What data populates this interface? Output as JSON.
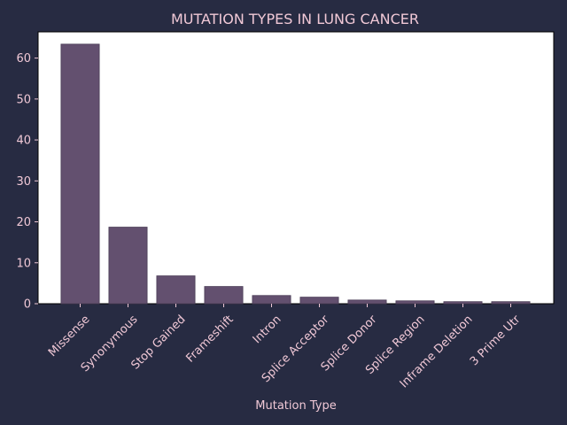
{
  "chart_data": {
    "type": "bar",
    "title": "MUTATION TYPES IN LUNG CANCER",
    "xlabel": "Mutation Type",
    "ylabel": "",
    "categories": [
      "Missense",
      "Synonymous",
      "Stop Gained",
      "Frameshift",
      "Intron",
      "Splice Acceptor",
      "Splice Donor",
      "Splice Region",
      "Inframe Deletion",
      "3 Prime Utr"
    ],
    "values": [
      63.4,
      18.7,
      6.8,
      4.2,
      2.0,
      1.6,
      0.9,
      0.7,
      0.5,
      0.5
    ],
    "ylim": [
      0,
      66.4
    ],
    "yticks": [
      0,
      10,
      20,
      30,
      40,
      50,
      60
    ],
    "grid": false,
    "colors": {
      "bar": "#63506f",
      "bar_edge": "#4a3c56",
      "plot_background": "#ffffff",
      "figure_background": "#272b42",
      "text": "#f0c8d6"
    }
  }
}
